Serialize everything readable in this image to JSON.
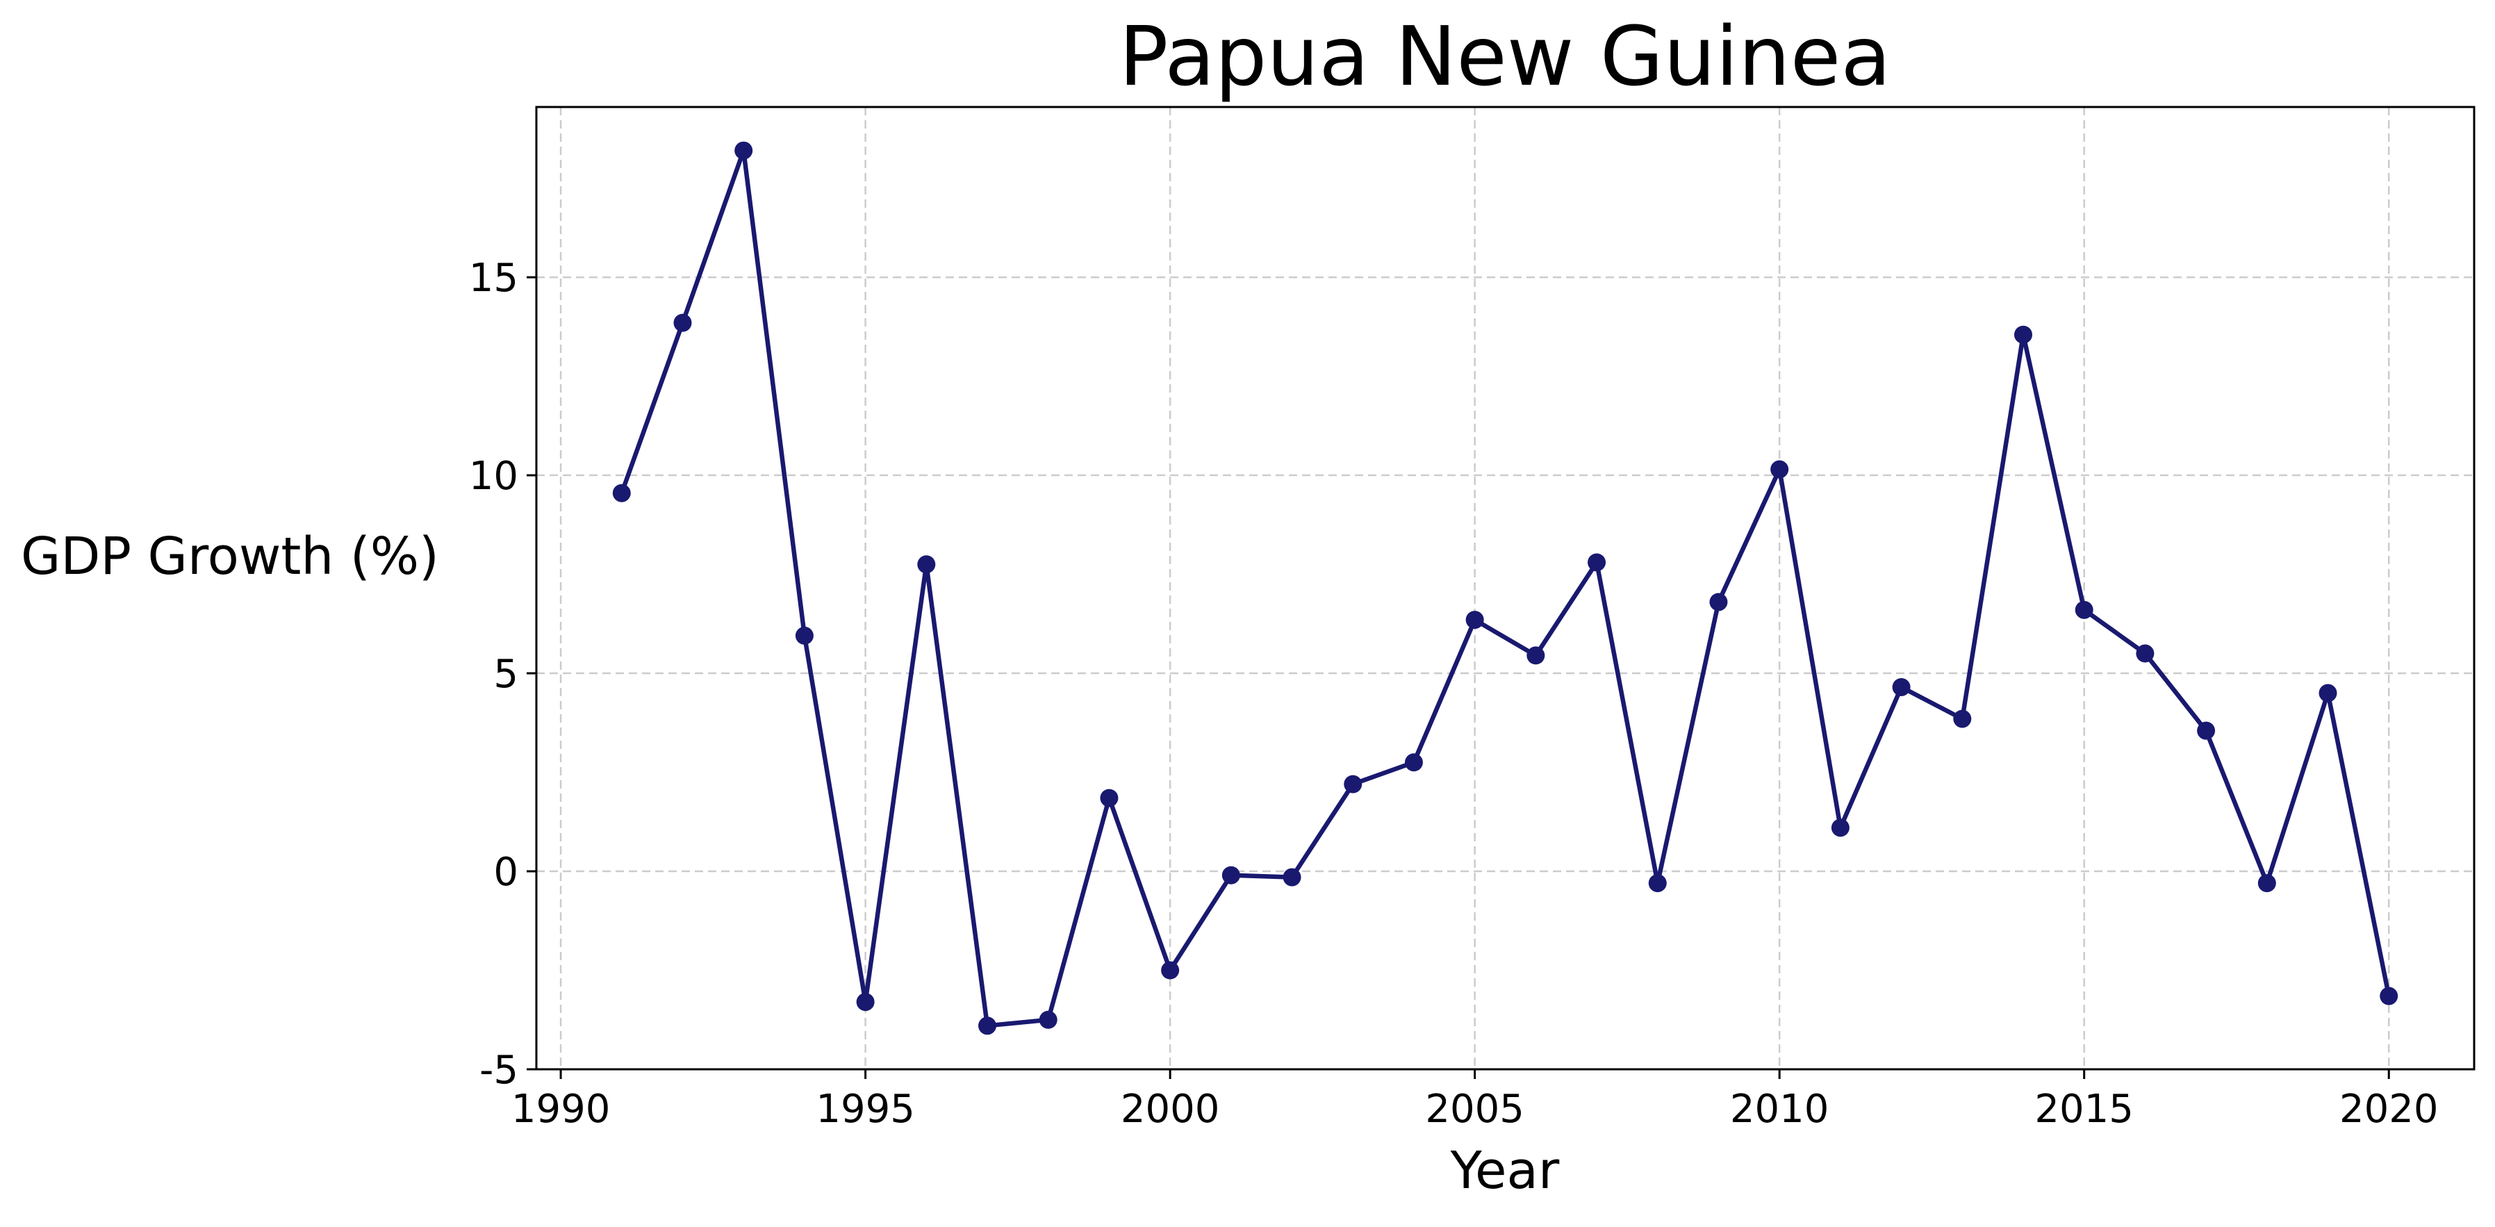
{
  "chart_data": {
    "type": "line",
    "title": "Papua New Guinea",
    "xlabel": "Year",
    "ylabel": "GDP Growth (%)",
    "xlim": [
      1989.6,
      2021.4
    ],
    "ylim": [
      -5,
      19.3
    ],
    "xticks": [
      1990,
      1995,
      2000,
      2005,
      2010,
      2015,
      2020
    ],
    "xtick_labels": [
      "1990",
      "1995",
      "2000",
      "2005",
      "2010",
      "2015",
      "2020"
    ],
    "yticks": [
      -5,
      0,
      5,
      10,
      15
    ],
    "ytick_labels": [
      "-5",
      "0",
      "5",
      "10",
      "15"
    ],
    "grid": true,
    "legend": "none",
    "series": [
      {
        "x": [
          1991,
          1992,
          1993,
          1994,
          1995,
          1996,
          1997,
          1998,
          1999,
          2000,
          2001,
          2002,
          2003,
          2004,
          2005,
          2006,
          2007,
          2008,
          2009,
          2010,
          2011,
          2012,
          2013,
          2014,
          2015,
          2016,
          2017,
          2018,
          2019,
          2020
        ],
        "y": [
          9.55,
          13.85,
          18.2,
          5.95,
          -3.3,
          7.75,
          -3.9,
          -3.75,
          1.85,
          -2.5,
          -0.1,
          -0.15,
          2.2,
          2.75,
          6.35,
          5.45,
          7.8,
          -0.3,
          6.8,
          10.15,
          1.1,
          4.65,
          3.85,
          13.55,
          6.6,
          5.5,
          3.55,
          -0.3,
          4.5,
          -3.15
        ],
        "color": "#191970"
      }
    ]
  }
}
